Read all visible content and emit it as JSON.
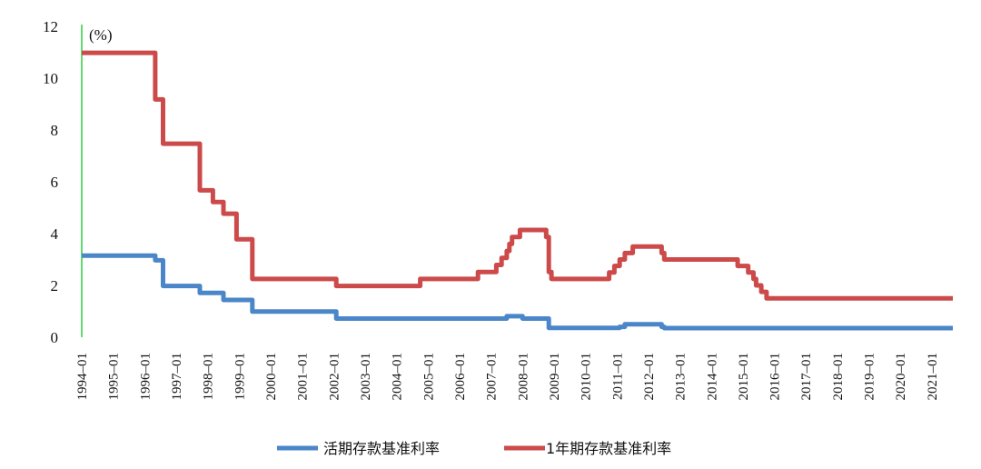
{
  "chart_data": {
    "type": "line",
    "unit_label": "(%)",
    "xlabel": "",
    "ylabel": "",
    "ylim": [
      0,
      12
    ],
    "y_ticks": [
      "0",
      "2",
      "4",
      "6",
      "8",
      "10",
      "12"
    ],
    "x_ticks": [
      "1994-01",
      "1995-01",
      "1996-01",
      "1997-01",
      "1998-01",
      "1999-01",
      "2000-01",
      "2001-01",
      "2002-01",
      "2003-01",
      "2004-01",
      "2005-01",
      "2006-01",
      "2007-01",
      "2008-01",
      "2009-01",
      "2010-01",
      "2011-01",
      "2012-01",
      "2013-01",
      "2014-01",
      "2015-01",
      "2016-01",
      "2017-01",
      "2018-01",
      "2019-01",
      "2020-01",
      "2021-01"
    ],
    "x_range": [
      "1994-01",
      "2021-09"
    ],
    "grid": false,
    "legend_position": "bottom-center",
    "series": [
      {
        "name": "活期存款基准利率",
        "color": "#4a86c8",
        "points": [
          [
            "1994-01",
            3.15
          ],
          [
            "1996-05",
            3.15
          ],
          [
            "1996-05",
            2.97
          ],
          [
            "1996-08",
            2.97
          ],
          [
            "1996-08",
            1.98
          ],
          [
            "1997-10",
            1.98
          ],
          [
            "1997-10",
            1.71
          ],
          [
            "1998-07",
            1.71
          ],
          [
            "1998-07",
            1.44
          ],
          [
            "1999-06",
            1.44
          ],
          [
            "1999-06",
            0.99
          ],
          [
            "2002-02",
            0.99
          ],
          [
            "2002-02",
            0.72
          ],
          [
            "2007-07",
            0.72
          ],
          [
            "2007-07",
            0.81
          ],
          [
            "2008-01",
            0.81
          ],
          [
            "2008-01",
            0.72
          ],
          [
            "2008-11",
            0.72
          ],
          [
            "2008-11",
            0.36
          ],
          [
            "2011-02",
            0.36
          ],
          [
            "2011-02",
            0.4
          ],
          [
            "2011-04",
            0.4
          ],
          [
            "2011-04",
            0.5
          ],
          [
            "2012-06",
            0.5
          ],
          [
            "2012-06",
            0.4
          ],
          [
            "2012-07",
            0.4
          ],
          [
            "2012-07",
            0.35
          ],
          [
            "2021-09",
            0.35
          ]
        ]
      },
      {
        "name": "1年期存款基准利率",
        "color": "#cc4a4a",
        "points": [
          [
            "1994-01",
            10.98
          ],
          [
            "1996-05",
            10.98
          ],
          [
            "1996-05",
            9.18
          ],
          [
            "1996-08",
            9.18
          ],
          [
            "1996-08",
            7.47
          ],
          [
            "1997-10",
            7.47
          ],
          [
            "1997-10",
            5.67
          ],
          [
            "1998-03",
            5.67
          ],
          [
            "1998-03",
            5.22
          ],
          [
            "1998-07",
            5.22
          ],
          [
            "1998-07",
            4.77
          ],
          [
            "1998-12",
            4.77
          ],
          [
            "1998-12",
            3.78
          ],
          [
            "1999-06",
            3.78
          ],
          [
            "1999-06",
            2.25
          ],
          [
            "2002-02",
            2.25
          ],
          [
            "2002-02",
            1.98
          ],
          [
            "2004-10",
            1.98
          ],
          [
            "2004-10",
            2.25
          ],
          [
            "2006-08",
            2.25
          ],
          [
            "2006-08",
            2.52
          ],
          [
            "2007-03",
            2.52
          ],
          [
            "2007-03",
            2.79
          ],
          [
            "2007-05",
            2.79
          ],
          [
            "2007-05",
            3.06
          ],
          [
            "2007-07",
            3.06
          ],
          [
            "2007-07",
            3.33
          ],
          [
            "2007-08",
            3.33
          ],
          [
            "2007-08",
            3.6
          ],
          [
            "2007-09",
            3.6
          ],
          [
            "2007-09",
            3.87
          ],
          [
            "2007-12",
            3.87
          ],
          [
            "2007-12",
            4.14
          ],
          [
            "2008-10",
            4.14
          ],
          [
            "2008-10",
            3.87
          ],
          [
            "2008-11",
            3.87
          ],
          [
            "2008-11",
            2.52
          ],
          [
            "2008-12",
            2.52
          ],
          [
            "2008-12",
            2.25
          ],
          [
            "2010-10",
            2.25
          ],
          [
            "2010-10",
            2.5
          ],
          [
            "2010-12",
            2.5
          ],
          [
            "2010-12",
            2.75
          ],
          [
            "2011-02",
            2.75
          ],
          [
            "2011-02",
            3.0
          ],
          [
            "2011-04",
            3.0
          ],
          [
            "2011-04",
            3.25
          ],
          [
            "2011-07",
            3.25
          ],
          [
            "2011-07",
            3.5
          ],
          [
            "2012-06",
            3.5
          ],
          [
            "2012-06",
            3.25
          ],
          [
            "2012-07",
            3.25
          ],
          [
            "2012-07",
            3.0
          ],
          [
            "2014-11",
            3.0
          ],
          [
            "2014-11",
            2.75
          ],
          [
            "2015-03",
            2.75
          ],
          [
            "2015-03",
            2.5
          ],
          [
            "2015-05",
            2.5
          ],
          [
            "2015-05",
            2.25
          ],
          [
            "2015-06",
            2.25
          ],
          [
            "2015-06",
            2.0
          ],
          [
            "2015-08",
            2.0
          ],
          [
            "2015-08",
            1.75
          ],
          [
            "2015-10",
            1.75
          ],
          [
            "2015-10",
            1.5
          ],
          [
            "2021-09",
            1.5
          ]
        ]
      }
    ]
  }
}
